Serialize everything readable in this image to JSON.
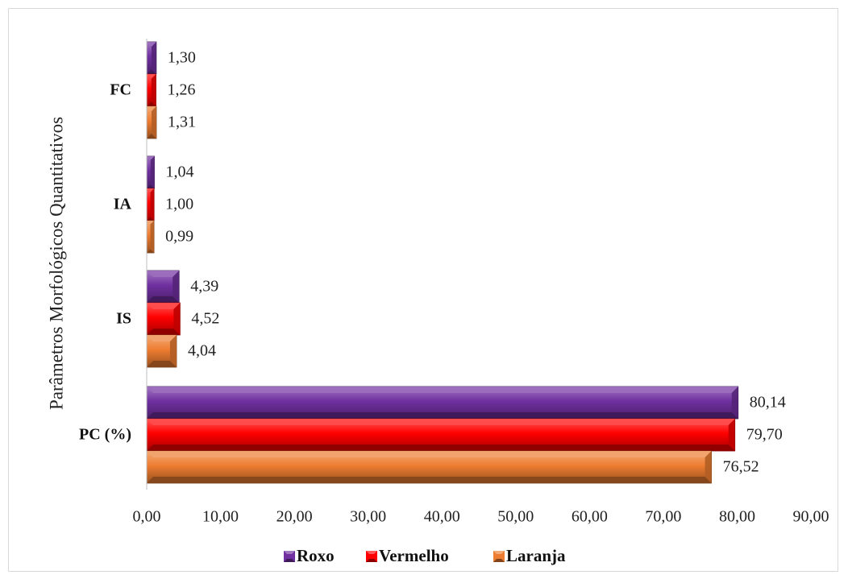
{
  "chart_data": {
    "type": "bar",
    "orientation": "horizontal",
    "title": "",
    "ylabel": "Parâmetros Morfológicos Quantitativos",
    "xlabel": "",
    "categories": [
      "PC (%)",
      "IS",
      "IA",
      "FC"
    ],
    "xlim": [
      0,
      90
    ],
    "xticks": [
      "0,00",
      "10,00",
      "20,00",
      "30,00",
      "40,00",
      "50,00",
      "60,00",
      "70,00",
      "80,00",
      "90,00"
    ],
    "grid": false,
    "legend_position": "bottom",
    "series": [
      {
        "name": "Roxo",
        "color": "#7030a0",
        "values": [
          80.14,
          4.39,
          1.04,
          1.3
        ],
        "labels": [
          "80,14",
          "4,39",
          "1,04",
          "1,30"
        ]
      },
      {
        "name": "Vermelho",
        "color": "#ff0000",
        "values": [
          79.7,
          4.52,
          1.0,
          1.26
        ],
        "labels": [
          "79,70",
          "4,52",
          "1,00",
          "1,26"
        ]
      },
      {
        "name": "Laranja",
        "color": "#ed7d31",
        "values": [
          76.52,
          4.04,
          0.99,
          1.31
        ],
        "labels": [
          "76,52",
          "4,04",
          "0,99",
          "1,31"
        ]
      }
    ]
  }
}
